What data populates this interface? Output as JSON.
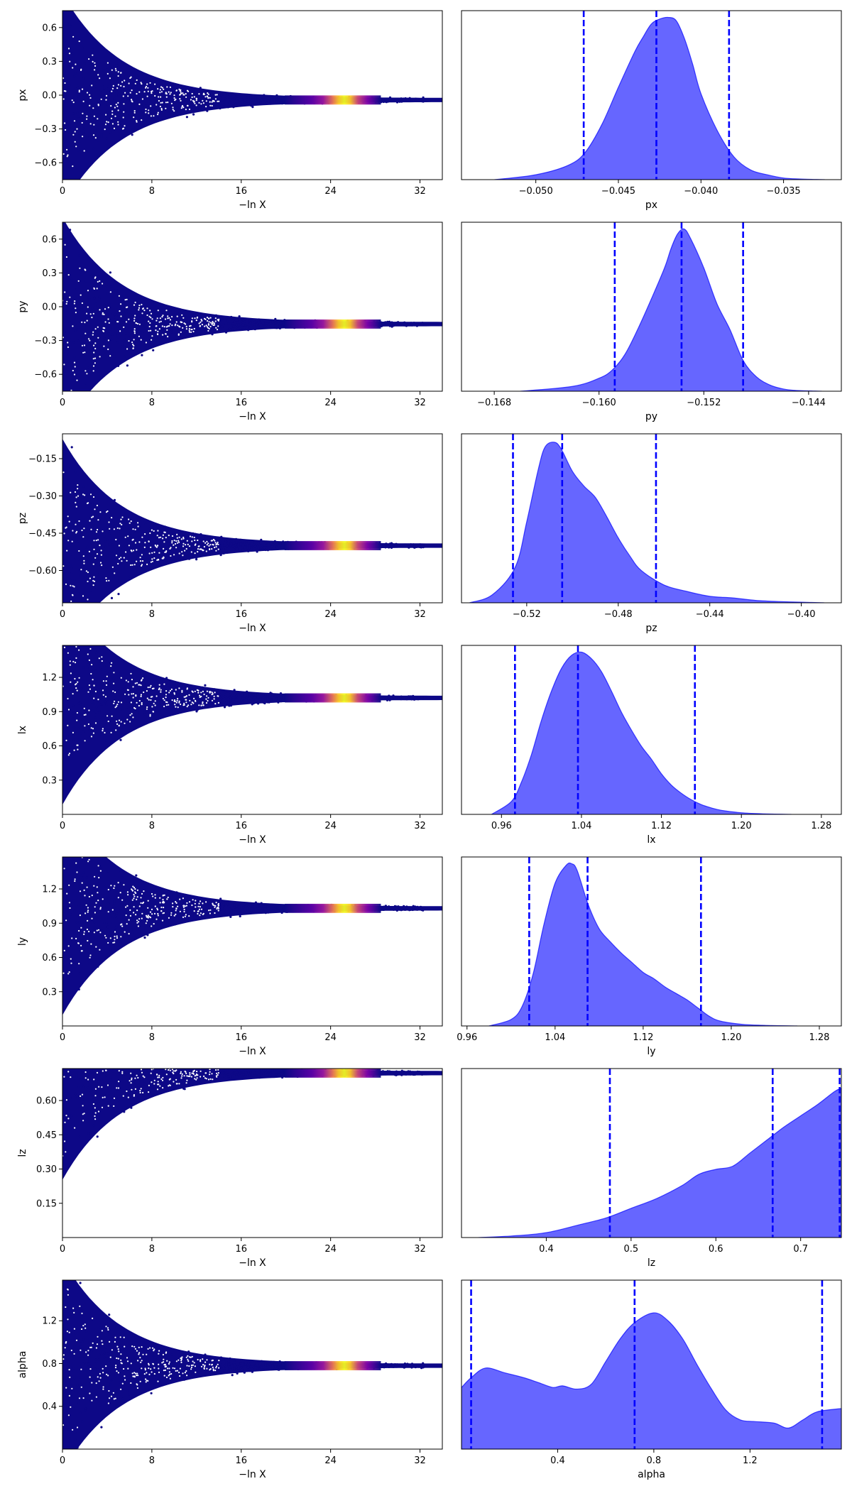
{
  "colors": {
    "trace_low": "#0d0887",
    "trace_mid": "#9c179e",
    "trace_high": "#f0f921",
    "posterior_fill": "#0000ff",
    "quantile_line": "#0000ff"
  },
  "chart_data": [
    {
      "type": "scatter",
      "param": "px",
      "xlabel": "−ln X",
      "ylabel": "px",
      "xlim": [
        0,
        34
      ],
      "ylim": [
        -0.75,
        0.75
      ],
      "xticks": [
        0,
        8,
        16,
        24,
        32
      ],
      "yticks": [
        -0.6,
        -0.3,
        0.0,
        0.3,
        0.6
      ],
      "ytick_labels": [
        "−0.6",
        "−0.3",
        "0.0",
        "0.3",
        "0.6"
      ],
      "converged_value": -0.043,
      "color_peak_x": 23.3
    },
    {
      "type": "area",
      "param": "px",
      "xlabel": "px",
      "xlim": [
        -0.0545,
        -0.0315
      ],
      "xticks": [
        -0.05,
        -0.045,
        -0.04,
        -0.035
      ],
      "xtick_labels": [
        "−0.050",
        "−0.045",
        "−0.040",
        "−0.035"
      ],
      "quantiles": [
        -0.0471,
        -0.0427,
        -0.0383
      ],
      "x": [
        -0.0525,
        -0.05,
        -0.048,
        -0.047,
        -0.046,
        -0.045,
        -0.044,
        -0.0435,
        -0.043,
        -0.0425,
        -0.042,
        -0.0415,
        -0.041,
        -0.0405,
        -0.04,
        -0.039,
        -0.038,
        -0.037,
        -0.036,
        -0.035,
        -0.034,
        -0.0325
      ],
      "y": [
        0.0,
        0.03,
        0.09,
        0.17,
        0.34,
        0.57,
        0.79,
        0.88,
        0.96,
        0.99,
        1.0,
        0.98,
        0.87,
        0.71,
        0.53,
        0.3,
        0.14,
        0.06,
        0.03,
        0.01,
        0.004,
        0.0
      ]
    },
    {
      "type": "scatter",
      "param": "py",
      "xlabel": "−ln X",
      "ylabel": "py",
      "xlim": [
        0,
        34
      ],
      "ylim": [
        -0.75,
        0.75
      ],
      "xticks": [
        0,
        8,
        16,
        24,
        32
      ],
      "yticks": [
        -0.6,
        -0.3,
        0.0,
        0.3,
        0.6
      ],
      "ytick_labels": [
        "−0.6",
        "−0.3",
        "0.0",
        "0.3",
        "0.6"
      ],
      "converged_value": -0.154,
      "color_peak_x": 23.3
    },
    {
      "type": "area",
      "param": "py",
      "xlabel": "py",
      "xlim": [
        -0.1705,
        -0.1415
      ],
      "xticks": [
        -0.168,
        -0.16,
        -0.152,
        -0.144
      ],
      "xtick_labels": [
        "−0.168",
        "−0.160",
        "−0.152",
        "−0.144"
      ],
      "quantiles": [
        -0.1588,
        -0.1537,
        -0.149
      ],
      "x": [
        -0.166,
        -0.162,
        -0.16,
        -0.159,
        -0.158,
        -0.157,
        -0.156,
        -0.155,
        -0.1545,
        -0.154,
        -0.1535,
        -0.153,
        -0.152,
        -0.151,
        -0.15,
        -0.149,
        -0.148,
        -0.147,
        -0.146,
        -0.145,
        -0.143
      ],
      "y": [
        0.0,
        0.03,
        0.08,
        0.13,
        0.23,
        0.39,
        0.57,
        0.76,
        0.88,
        0.97,
        1.0,
        0.94,
        0.76,
        0.54,
        0.38,
        0.19,
        0.09,
        0.04,
        0.015,
        0.005,
        0.0
      ]
    },
    {
      "type": "scatter",
      "param": "pz",
      "xlabel": "−ln X",
      "ylabel": "pz",
      "xlim": [
        0,
        34
      ],
      "ylim": [
        -0.73,
        -0.05
      ],
      "xticks": [
        0,
        8,
        16,
        24,
        32
      ],
      "yticks": [
        -0.6,
        -0.45,
        -0.3,
        -0.15
      ],
      "ytick_labels": [
        "−0.60",
        "−0.45",
        "−0.30",
        "−0.15"
      ],
      "converged_value": -0.5,
      "color_peak_x": 23.3
    },
    {
      "type": "area",
      "param": "pz",
      "xlabel": "pz",
      "xlim": [
        -0.5485,
        -0.3825
      ],
      "xticks": [
        -0.52,
        -0.48,
        -0.44,
        -0.4
      ],
      "xtick_labels": [
        "−0.52",
        "−0.48",
        "−0.44",
        "−0.40"
      ],
      "quantiles": [
        -0.526,
        -0.5045,
        -0.4635
      ],
      "x": [
        -0.545,
        -0.535,
        -0.525,
        -0.52,
        -0.515,
        -0.512,
        -0.508,
        -0.505,
        -0.5,
        -0.495,
        -0.49,
        -0.485,
        -0.48,
        -0.475,
        -0.47,
        -0.46,
        -0.45,
        -0.44,
        -0.43,
        -0.42,
        -0.41,
        -0.4,
        -0.39
      ],
      "y": [
        0.0,
        0.05,
        0.22,
        0.5,
        0.82,
        0.96,
        0.99,
        0.95,
        0.81,
        0.72,
        0.65,
        0.53,
        0.4,
        0.29,
        0.2,
        0.11,
        0.07,
        0.04,
        0.03,
        0.015,
        0.008,
        0.004,
        0.0
      ]
    },
    {
      "type": "scatter",
      "param": "lx",
      "xlabel": "−ln X",
      "ylabel": "lx",
      "xlim": [
        0,
        34
      ],
      "ylim": [
        0.0,
        1.48
      ],
      "xticks": [
        0,
        8,
        16,
        24,
        32
      ],
      "yticks": [
        0.3,
        0.6,
        0.9,
        1.2
      ],
      "ytick_labels": [
        "0.3",
        "0.6",
        "0.9",
        "1.2"
      ],
      "converged_value": 1.02,
      "color_peak_x": 23.3
    },
    {
      "type": "area",
      "param": "lx",
      "xlabel": "lx",
      "xlim": [
        0.92,
        1.3
      ],
      "xticks": [
        0.96,
        1.04,
        1.12,
        1.2,
        1.28
      ],
      "xtick_labels": [
        "0.96",
        "1.04",
        "1.12",
        "1.20",
        "1.28"
      ],
      "quantiles": [
        0.9735,
        1.0365,
        1.1535
      ],
      "x": [
        0.95,
        0.97,
        0.98,
        0.99,
        1.0,
        1.01,
        1.02,
        1.03,
        1.04,
        1.05,
        1.06,
        1.07,
        1.08,
        1.09,
        1.1,
        1.11,
        1.12,
        1.13,
        1.14,
        1.15,
        1.16,
        1.17,
        1.18,
        1.2,
        1.22,
        1.25
      ],
      "y": [
        0.0,
        0.08,
        0.2,
        0.37,
        0.58,
        0.76,
        0.9,
        0.98,
        1.0,
        0.96,
        0.88,
        0.76,
        0.63,
        0.52,
        0.42,
        0.34,
        0.25,
        0.18,
        0.13,
        0.09,
        0.06,
        0.04,
        0.025,
        0.01,
        0.004,
        0.0
      ]
    },
    {
      "type": "scatter",
      "param": "ly",
      "xlabel": "−ln X",
      "ylabel": "ly",
      "xlim": [
        0,
        34
      ],
      "ylim": [
        0.0,
        1.48
      ],
      "xticks": [
        0,
        8,
        16,
        24,
        32
      ],
      "yticks": [
        0.3,
        0.6,
        0.9,
        1.2
      ],
      "ytick_labels": [
        "0.3",
        "0.6",
        "0.9",
        "1.2"
      ],
      "converged_value": 1.03,
      "color_peak_x": 23.3
    },
    {
      "type": "area",
      "param": "ly",
      "xlabel": "ly",
      "xlim": [
        0.955,
        1.3
      ],
      "xticks": [
        0.96,
        1.04,
        1.12,
        1.2,
        1.28
      ],
      "xtick_labels": [
        "0.96",
        "1.04",
        "1.12",
        "1.20",
        "1.28"
      ],
      "quantiles": [
        1.0165,
        1.0695,
        1.1725
      ],
      "x": [
        0.98,
        1.0,
        1.01,
        1.02,
        1.03,
        1.04,
        1.05,
        1.055,
        1.06,
        1.07,
        1.08,
        1.09,
        1.1,
        1.11,
        1.12,
        1.13,
        1.14,
        1.15,
        1.16,
        1.17,
        1.18,
        1.19,
        1.21,
        1.23,
        1.26
      ],
      "y": [
        0.0,
        0.04,
        0.12,
        0.32,
        0.63,
        0.88,
        0.99,
        1.0,
        0.96,
        0.75,
        0.6,
        0.52,
        0.45,
        0.39,
        0.33,
        0.29,
        0.24,
        0.2,
        0.16,
        0.11,
        0.06,
        0.03,
        0.01,
        0.004,
        0.0
      ]
    },
    {
      "type": "scatter",
      "param": "lz",
      "xlabel": "−ln X",
      "ylabel": "lz",
      "xlim": [
        0,
        34
      ],
      "ylim": [
        0.0,
        0.74
      ],
      "xticks": [
        0,
        8,
        16,
        24,
        32
      ],
      "yticks": [
        0.15,
        0.3,
        0.45,
        0.6
      ],
      "ytick_labels": [
        "0.15",
        "0.30",
        "0.45",
        "0.60"
      ],
      "converged_value": 0.72,
      "color_peak_x": 23.3
    },
    {
      "type": "area",
      "param": "lz",
      "xlabel": "lz",
      "xlim": [
        0.3,
        0.748
      ],
      "xticks": [
        0.4,
        0.5,
        0.6,
        0.7
      ],
      "xtick_labels": [
        "0.4",
        "0.5",
        "0.6",
        "0.7"
      ],
      "quantiles": [
        0.475,
        0.667,
        0.746
      ],
      "x": [
        0.32,
        0.36,
        0.4,
        0.44,
        0.47,
        0.5,
        0.53,
        0.56,
        0.58,
        0.6,
        0.62,
        0.64,
        0.66,
        0.68,
        0.7,
        0.72,
        0.74,
        0.748
      ],
      "y": [
        0.0,
        0.01,
        0.03,
        0.08,
        0.12,
        0.18,
        0.24,
        0.32,
        0.39,
        0.42,
        0.44,
        0.52,
        0.6,
        0.68,
        0.75,
        0.82,
        0.9,
        0.92
      ]
    },
    {
      "type": "scatter",
      "param": "alpha",
      "xlabel": "−ln X",
      "ylabel": "alpha",
      "xlim": [
        0,
        34
      ],
      "ylim": [
        0.0,
        1.58
      ],
      "xticks": [
        0,
        8,
        16,
        24,
        32
      ],
      "yticks": [
        0.4,
        0.8,
        1.2
      ],
      "ytick_labels": [
        "0.4",
        "0.8",
        "1.2"
      ],
      "converged_value": 0.78,
      "color_peak_x": 23.3
    },
    {
      "type": "area",
      "param": "alpha",
      "xlabel": "alpha",
      "xlim": [
        0.0,
        1.58
      ],
      "xticks": [
        0.4,
        0.8,
        1.2
      ],
      "xtick_labels": [
        "0.4",
        "0.8",
        "1.2"
      ],
      "quantiles": [
        0.04,
        0.72,
        1.5
      ],
      "x": [
        0.0,
        0.04,
        0.1,
        0.18,
        0.26,
        0.32,
        0.38,
        0.42,
        0.48,
        0.54,
        0.6,
        0.66,
        0.72,
        0.8,
        0.86,
        0.92,
        0.98,
        1.04,
        1.1,
        1.16,
        1.22,
        1.3,
        1.36,
        1.42,
        1.48,
        1.58
      ],
      "y": [
        0.38,
        0.44,
        0.5,
        0.47,
        0.44,
        0.41,
        0.38,
        0.39,
        0.37,
        0.4,
        0.54,
        0.68,
        0.78,
        0.84,
        0.79,
        0.68,
        0.52,
        0.37,
        0.24,
        0.18,
        0.17,
        0.16,
        0.13,
        0.18,
        0.23,
        0.25
      ]
    }
  ]
}
